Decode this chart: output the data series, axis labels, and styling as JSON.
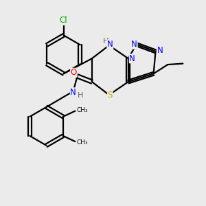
{
  "background_color": "#ebebeb",
  "bond_color": "#000000",
  "atom_colors": {
    "N": "#0000ff",
    "O": "#ff0000",
    "S": "#ccaa00",
    "Cl": "#00aa00",
    "C": "#000000",
    "H": "#606060"
  },
  "figsize": [
    3.0,
    3.0
  ],
  "dpi": 100
}
